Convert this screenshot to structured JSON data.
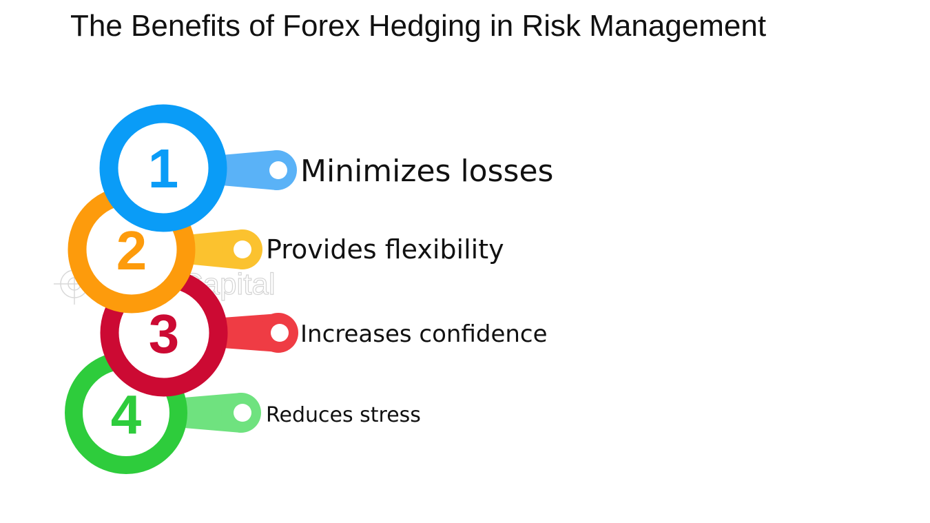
{
  "title": "The Benefits of Forex Hedging in Risk Management",
  "watermark": "FasterCapital",
  "steps": [
    {
      "number": "1",
      "label": "Minimizes losses",
      "ring_color": "#0a9cf7",
      "arm_color": "#5ab2f7"
    },
    {
      "number": "2",
      "label": "Provides flexibility",
      "ring_color": "#fd9b0c",
      "arm_color": "#fbc22f"
    },
    {
      "number": "3",
      "label": "Increases confidence",
      "ring_color": "#cc0a33",
      "arm_color": "#ef3c44"
    },
    {
      "number": "4",
      "label": "Reduces stress",
      "ring_color": "#2ecc3c",
      "arm_color": "#6fe27f"
    }
  ]
}
